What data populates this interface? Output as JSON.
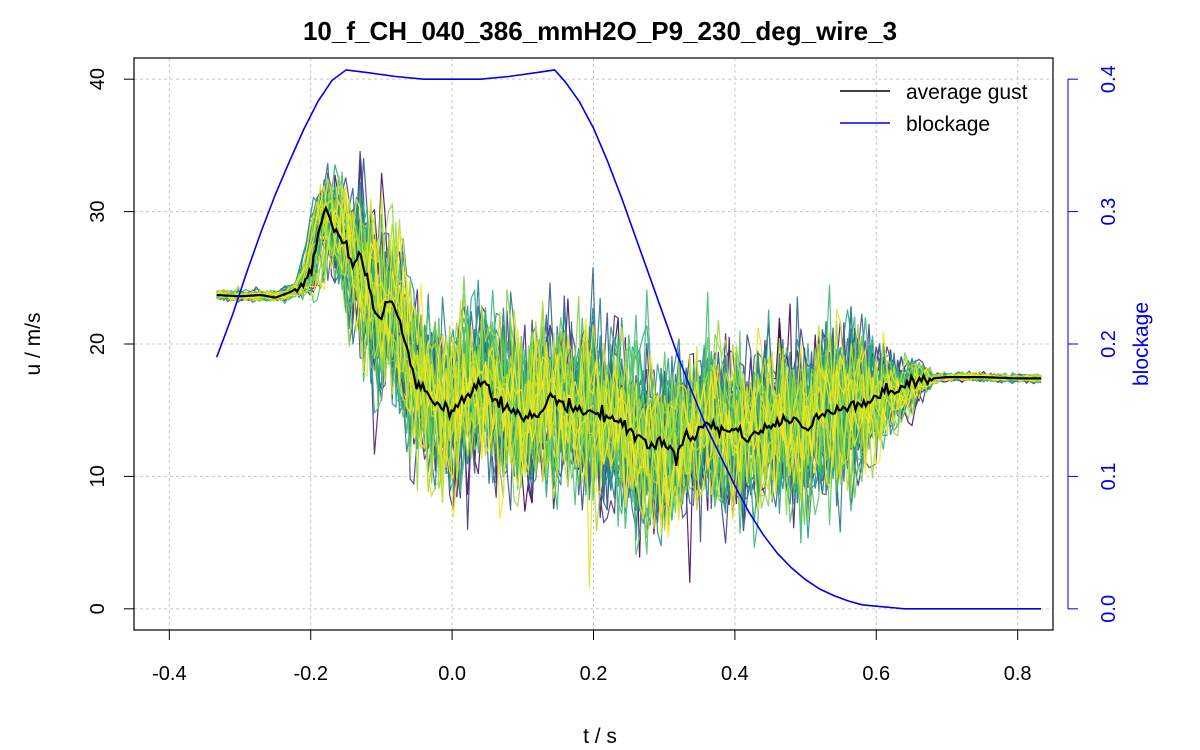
{
  "chart_data": {
    "type": "line",
    "title": "10_f_CH_040_386_mmH2O_P9_230_deg_wire_3",
    "xlabel": "t / s",
    "ylabel": "u / m/s",
    "y2label": "blockage",
    "xlim": [
      -0.45,
      0.85
    ],
    "ylim": [
      -1.6,
      41.6
    ],
    "y2lim": [
      -0.016,
      0.416
    ],
    "x_ticks": [
      -0.4,
      -0.2,
      0.0,
      0.2,
      0.4,
      0.6,
      0.8
    ],
    "x_tick_labels": [
      "-0.4",
      "-0.2",
      "0.0",
      "0.2",
      "0.4",
      "0.6",
      "0.8"
    ],
    "y_ticks": [
      0,
      10,
      20,
      30,
      40
    ],
    "y_tick_labels": [
      "0",
      "10",
      "20",
      "30",
      "40"
    ],
    "y2_ticks": [
      0.0,
      0.1,
      0.2,
      0.3,
      0.4
    ],
    "y2_tick_labels": [
      "0.0",
      "0.1",
      "0.2",
      "0.3",
      "0.4"
    ],
    "grid": true,
    "legend": {
      "position": "top-right",
      "entries": [
        "average gust",
        "blockage"
      ]
    },
    "individual_runs": {
      "count": 60,
      "colormap": "viridis",
      "legend": false
    },
    "series": [
      {
        "name": "average gust",
        "axis": "left",
        "color": "#000000",
        "x": [
          -0.333,
          -0.3,
          -0.27,
          -0.25,
          -0.23,
          -0.21,
          -0.2,
          -0.19,
          -0.18,
          -0.17,
          -0.16,
          -0.15,
          -0.14,
          -0.13,
          -0.12,
          -0.11,
          -0.1,
          -0.09,
          -0.08,
          -0.07,
          -0.06,
          -0.05,
          -0.04,
          -0.03,
          -0.02,
          -0.01,
          0.0,
          0.01,
          0.02,
          0.03,
          0.04,
          0.05,
          0.06,
          0.08,
          0.1,
          0.12,
          0.14,
          0.16,
          0.18,
          0.2,
          0.22,
          0.24,
          0.26,
          0.28,
          0.3,
          0.32,
          0.33,
          0.34,
          0.36,
          0.38,
          0.4,
          0.42,
          0.44,
          0.46,
          0.48,
          0.5,
          0.52,
          0.54,
          0.56,
          0.58,
          0.6,
          0.62,
          0.64,
          0.66,
          0.68,
          0.7,
          0.75,
          0.8,
          0.833
        ],
        "y": [
          23.7,
          23.6,
          23.7,
          23.5,
          23.9,
          24.5,
          25.5,
          28.0,
          30.5,
          29.0,
          28.0,
          27.5,
          26.0,
          27.0,
          25.0,
          22.5,
          22.0,
          23.5,
          22.5,
          21.0,
          18.5,
          17.0,
          16.5,
          16.0,
          15.5,
          15.3,
          14.8,
          15.5,
          16.0,
          16.5,
          17.5,
          17.0,
          16.0,
          15.0,
          14.5,
          14.5,
          16.0,
          15.5,
          15.0,
          14.8,
          14.6,
          14.0,
          13.0,
          12.5,
          12.5,
          11.5,
          13.5,
          13.0,
          14.0,
          13.5,
          13.5,
          13.0,
          13.5,
          14.0,
          14.5,
          13.5,
          14.5,
          15.0,
          15.5,
          15.5,
          16.0,
          16.5,
          16.8,
          17.2,
          17.4,
          17.5,
          17.5,
          17.4,
          17.4
        ]
      },
      {
        "name": "blockage",
        "axis": "right",
        "color": "#0000ee",
        "x": [
          -0.333,
          -0.31,
          -0.29,
          -0.27,
          -0.25,
          -0.23,
          -0.21,
          -0.19,
          -0.17,
          -0.15,
          -0.12,
          -0.08,
          -0.04,
          0.0,
          0.04,
          0.08,
          0.12,
          0.145,
          0.16,
          0.18,
          0.2,
          0.22,
          0.24,
          0.26,
          0.28,
          0.3,
          0.32,
          0.34,
          0.36,
          0.38,
          0.4,
          0.42,
          0.44,
          0.46,
          0.48,
          0.5,
          0.52,
          0.54,
          0.56,
          0.58,
          0.6,
          0.62,
          0.64,
          0.66,
          0.68,
          0.7,
          0.75,
          0.8,
          0.833
        ],
        "y": [
          0.19,
          0.223,
          0.255,
          0.285,
          0.313,
          0.338,
          0.362,
          0.383,
          0.399,
          0.407,
          0.405,
          0.402,
          0.4,
          0.4,
          0.4,
          0.402,
          0.405,
          0.407,
          0.398,
          0.383,
          0.363,
          0.338,
          0.31,
          0.28,
          0.25,
          0.22,
          0.19,
          0.163,
          0.137,
          0.115,
          0.093,
          0.073,
          0.056,
          0.042,
          0.031,
          0.022,
          0.015,
          0.01,
          0.006,
          0.003,
          0.002,
          0.001,
          0.0,
          0.0,
          0.0,
          0.0,
          0.0,
          0.0,
          0.0
        ]
      }
    ]
  }
}
